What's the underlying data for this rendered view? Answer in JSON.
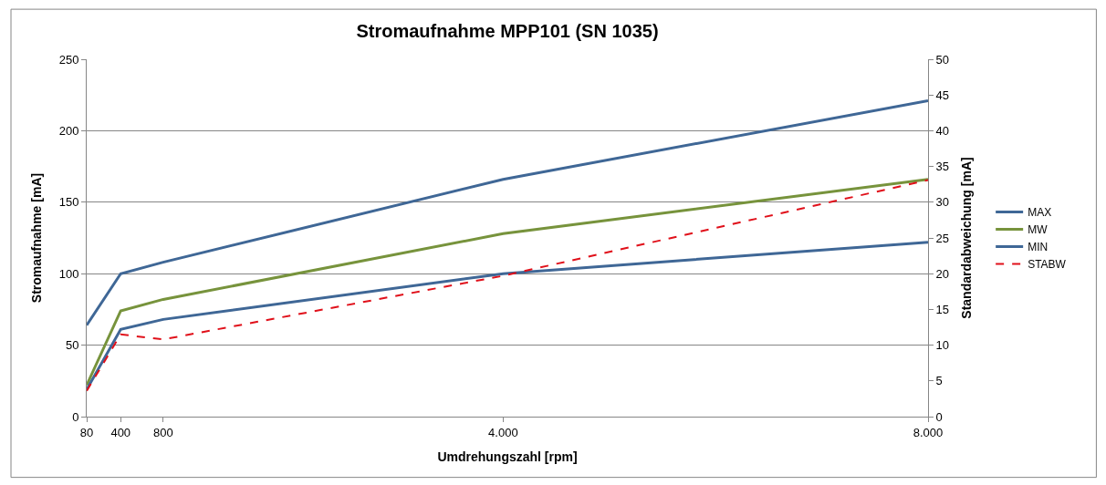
{
  "chart_data": {
    "type": "line",
    "title": "Stromaufnahme MPP101 (SN 1035)",
    "xlabel": "Umdrehungszahl [rpm]",
    "ylabel": "Stromaufnahme [mA]",
    "y2label": "Standardabweichung [mA]",
    "x": [
      80,
      400,
      800,
      4000,
      8000
    ],
    "series": [
      {
        "name": "MAX",
        "color": "#3f6796",
        "values": [
          64,
          100,
          108,
          166,
          221
        ]
      },
      {
        "name": "MW",
        "color": "#77933c",
        "values": [
          22,
          74,
          82,
          128,
          166
        ]
      },
      {
        "name": "MIN",
        "color": "#3f6796",
        "values": [
          19,
          61,
          68,
          100,
          122
        ]
      },
      {
        "name": "STABW",
        "color": "#e0101a",
        "values": [
          3.6,
          11.5,
          10.8,
          19.7,
          33.1
        ],
        "axis": "y2",
        "line_style": "dashed"
      }
    ],
    "xlim": [
      80,
      8000
    ],
    "xticks": [
      80,
      400,
      800,
      {
        "value": 4000,
        "label": "4.000"
      },
      {
        "value": 8000,
        "label": "8.000"
      }
    ],
    "ylim": [
      0,
      250
    ],
    "yticks": [
      0,
      50,
      100,
      150,
      200,
      250
    ],
    "y2lim": [
      0,
      50
    ],
    "y2ticks": [
      0,
      5,
      10,
      15,
      20,
      25,
      30,
      35,
      40,
      45,
      50
    ],
    "grid": "y",
    "legend": "right",
    "marker": "none",
    "line_style": "solid"
  }
}
